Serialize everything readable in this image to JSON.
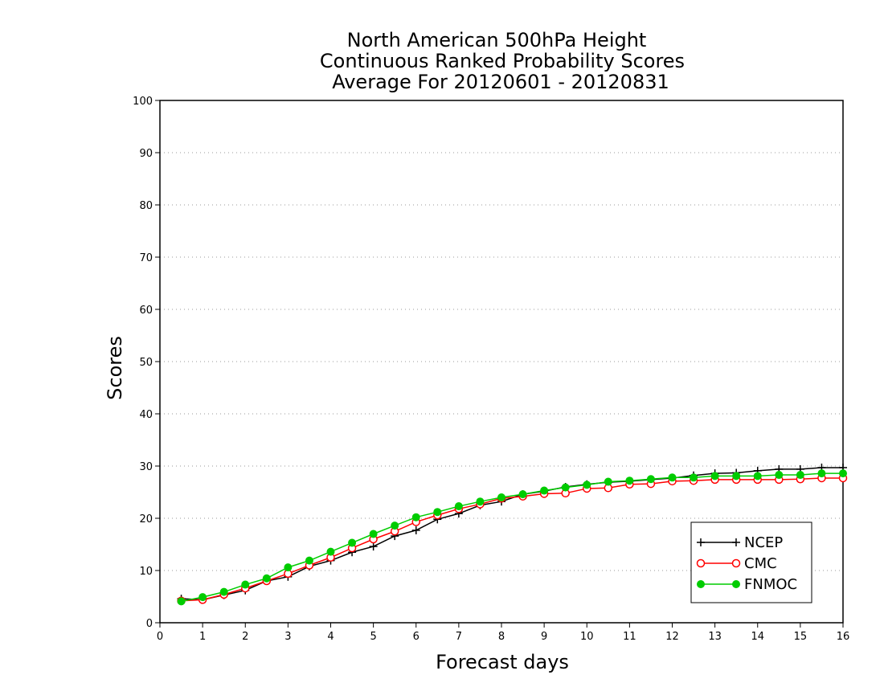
{
  "chart_data": {
    "type": "line",
    "title_lines": [
      "North American 500hPa Height",
      "Continuous Ranked Probability Scores",
      "Average For 20120601 - 20120831"
    ],
    "xlabel": "Forecast days",
    "ylabel": "Scores",
    "xlim": [
      0,
      16
    ],
    "ylim": [
      0,
      100
    ],
    "x_ticks": [
      0,
      1,
      2,
      3,
      4,
      5,
      6,
      7,
      8,
      9,
      10,
      11,
      12,
      13,
      14,
      15,
      16
    ],
    "y_ticks": [
      0,
      10,
      20,
      30,
      40,
      50,
      60,
      70,
      80,
      90,
      100
    ],
    "grid": "horizontal dotted",
    "legend_position": "bottom-right",
    "x": [
      0.5,
      1.0,
      1.5,
      2.0,
      2.5,
      3.0,
      3.5,
      4.0,
      4.5,
      5.0,
      5.5,
      6.0,
      6.5,
      7.0,
      7.5,
      8.0,
      8.5,
      9.0,
      9.5,
      10.0,
      10.5,
      11.0,
      11.5,
      12.0,
      12.5,
      13.0,
      13.5,
      14.0,
      14.5,
      15.0,
      15.5,
      16.0
    ],
    "series": [
      {
        "name": "NCEP",
        "color": "#000000",
        "marker": "plus",
        "values": [
          4.6,
          4.4,
          5.3,
          6.2,
          8.0,
          8.8,
          10.8,
          11.9,
          13.5,
          14.6,
          16.6,
          17.7,
          19.8,
          20.9,
          22.5,
          23.2,
          24.6,
          25.2,
          26.0,
          26.5,
          26.9,
          27.1,
          27.4,
          27.7,
          28.2,
          28.6,
          28.7,
          29.1,
          29.4,
          29.4,
          29.7,
          29.7
        ]
      },
      {
        "name": "CMC",
        "color": "#ff0000",
        "marker": "open-circle",
        "values": [
          4.2,
          4.4,
          5.4,
          6.6,
          8.0,
          9.4,
          11.0,
          12.5,
          14.3,
          16.0,
          17.5,
          19.3,
          20.6,
          21.8,
          22.7,
          23.8,
          24.2,
          24.7,
          24.8,
          25.7,
          25.8,
          26.5,
          26.6,
          27.1,
          27.2,
          27.4,
          27.4,
          27.4,
          27.4,
          27.5,
          27.7,
          27.7
        ]
      },
      {
        "name": "FNMOC",
        "color": "#00cc00",
        "marker": "filled-circle",
        "values": [
          4.1,
          4.9,
          5.9,
          7.3,
          8.5,
          10.6,
          11.9,
          13.6,
          15.3,
          17.0,
          18.6,
          20.2,
          21.2,
          22.3,
          23.2,
          24.0,
          24.6,
          25.3,
          25.9,
          26.4,
          27.0,
          27.2,
          27.5,
          27.8,
          27.8,
          28.1,
          28.1,
          28.1,
          28.3,
          28.3,
          28.6,
          28.6
        ]
      }
    ]
  }
}
